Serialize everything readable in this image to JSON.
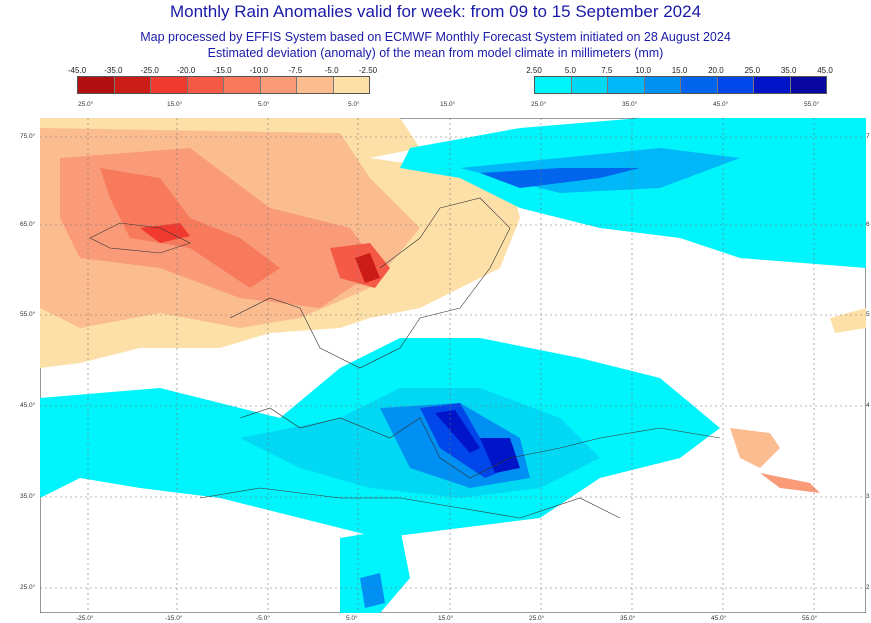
{
  "title": "Monthly Rain Anomalies valid for week: from 09 to 15 September 2024",
  "subtitle1": "Map processed by EFFIS System based on ECMWF Monthly Forecast System initiated on 28 August 2024",
  "subtitle2": "Estimated deviation (anomaly) of the mean from model climate in millimeters (mm)",
  "legend_negative": {
    "labels": [
      "-45.0",
      "-35.0",
      "-25.0",
      "-20.0",
      "-15.0",
      "-10.0",
      "-7.5",
      "-5.0",
      "-2.50"
    ],
    "colors": [
      "#b01010",
      "#cc1c18",
      "#f03a30",
      "#f45a46",
      "#f77a5c",
      "#f99a78",
      "#fbbc90",
      "#fde0a8"
    ]
  },
  "legend_positive": {
    "labels": [
      "2.50",
      "5.0",
      "7.5",
      "10.0",
      "15.0",
      "20.0",
      "25.0",
      "35.0",
      "45.0"
    ],
    "colors": [
      "#00f4fc",
      "#00d8f4",
      "#00b8f8",
      "#0090f4",
      "#0064ec",
      "#0046e8",
      "#0014c8",
      "#0808a0"
    ]
  },
  "top_lon_labels": [
    "25.0°",
    "15.0°",
    "5.0°",
    "5.0°",
    "15.0°",
    "25.0°",
    "35.0°",
    "45.0°",
    "55.0°"
  ],
  "bottom_lon_labels": [
    "-25.0°",
    "-15.0°",
    "-5.0°",
    "5.0°",
    "15.0°",
    "25.0°",
    "35.0°",
    "45.0°",
    "55.0°"
  ],
  "left_lat_labels": [
    "75.0°",
    "65.0°",
    "55.0°",
    "45.0°",
    "35.0°",
    "25.0°"
  ],
  "right_lat_labels": [
    "7",
    "6",
    "5",
    "4",
    "3",
    "2"
  ]
}
